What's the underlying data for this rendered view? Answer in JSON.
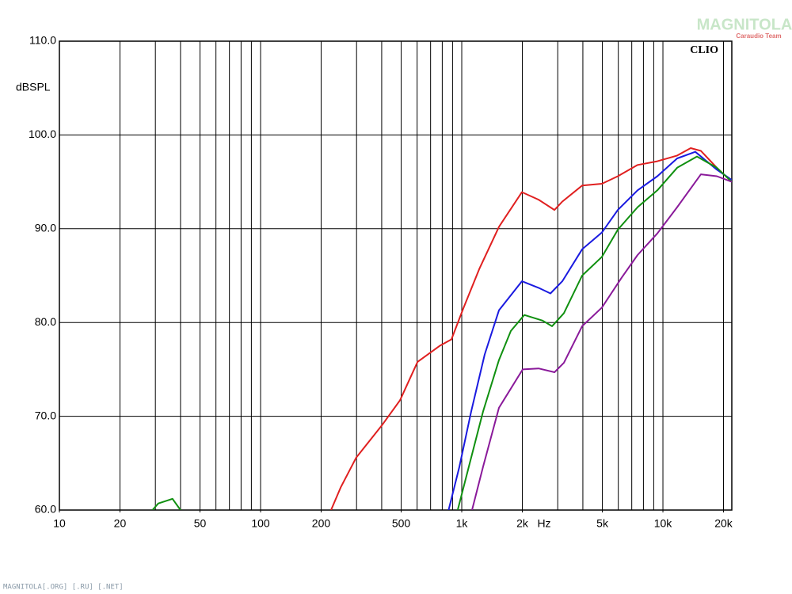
{
  "chart_data": {
    "type": "line",
    "y_label": "dBSPL",
    "x_label": "Hz",
    "brand": "CLIO",
    "watermark": "MAGNITOLA",
    "watermark_sub": "Caraudio Team",
    "footer": "MAGNITOLA[.ORG] [.RU] [.NET]",
    "log_x": true,
    "grid": true,
    "xlim": [
      10,
      22000
    ],
    "ylim": [
      60,
      110
    ],
    "xticks": [
      10,
      20,
      50,
      100,
      200,
      500,
      {
        "value": 1000,
        "label": "1k"
      },
      {
        "value": 2000,
        "label": "2k"
      },
      {
        "value": 5000,
        "label": "5k"
      },
      {
        "value": 10000,
        "label": "10k"
      },
      {
        "value": 20000,
        "label": "20k"
      }
    ],
    "xgrid": [
      20,
      30,
      40,
      50,
      60,
      70,
      80,
      90,
      100,
      200,
      300,
      400,
      500,
      600,
      700,
      800,
      900,
      1000,
      2000,
      3000,
      4000,
      5000,
      6000,
      7000,
      8000,
      9000,
      10000,
      20000
    ],
    "yticks": [
      {
        "value": 60,
        "label": "60.0"
      },
      {
        "value": 70,
        "label": "70.0"
      },
      {
        "value": 80,
        "label": "80.0"
      },
      {
        "value": 90,
        "label": "90.0"
      },
      {
        "value": 100,
        "label": "100.0"
      },
      {
        "value": 110,
        "label": "110.0"
      }
    ],
    "series": [
      {
        "color": "#e02020",
        "x": [
          224,
          250,
          299,
          400,
          493,
          603,
          776,
          889,
          1018,
          1222,
          1531,
          1991,
          2410,
          2890,
          3162,
          3966,
          4977,
          5970,
          7480,
          9380,
          11770,
          13740,
          15450,
          18530,
          22000
        ],
        "values": [
          60,
          62.4,
          65.6,
          69.0,
          71.7,
          75.8,
          77.5,
          78.2,
          81.5,
          85.7,
          90.2,
          93.9,
          93.1,
          92.0,
          92.9,
          94.6,
          94.8,
          95.6,
          96.8,
          97.2,
          97.8,
          98.6,
          98.3,
          96.5,
          95.0
        ]
      },
      {
        "color": "#1a1ae0",
        "x": [
          860,
          973,
          1114,
          1300,
          1531,
          1991,
          2410,
          2760,
          3162,
          3966,
          4977,
          5970,
          7480,
          9380,
          11770,
          14490,
          18530,
          22000
        ],
        "values": [
          60,
          64.6,
          70.5,
          76.6,
          81.3,
          84.4,
          83.7,
          83.1,
          84.4,
          87.8,
          89.6,
          92.0,
          94.1,
          95.6,
          97.5,
          98.2,
          96.3,
          95.2
        ]
      },
      {
        "color": "#109010",
        "x": [
          29,
          31,
          36.5,
          40,
          null,
          955,
          1084,
          1276,
          1531,
          1754,
          2047,
          2524,
          2810,
          3220,
          3966,
          4977,
          5970,
          7480,
          9380,
          11770,
          14760,
          18530,
          22000
        ],
        "values": [
          60,
          60.7,
          61.2,
          60,
          null,
          60,
          64.6,
          70.5,
          76.0,
          79.1,
          80.8,
          80.2,
          79.6,
          81.0,
          85.0,
          87.0,
          89.9,
          92.3,
          94.1,
          96.5,
          97.7,
          96.5,
          95.0
        ]
      },
      {
        "color": "#8a1a9a",
        "x": [
          1125,
          1276,
          1531,
          2010,
          2410,
          2890,
          3220,
          3966,
          4977,
          6240,
          7480,
          9380,
          11770,
          15450,
          18530,
          22000
        ],
        "values": [
          60,
          64.6,
          70.9,
          75.0,
          75.1,
          74.7,
          75.7,
          79.6,
          81.6,
          84.8,
          87.2,
          89.5,
          92.3,
          95.8,
          95.6,
          95.0
        ]
      }
    ]
  }
}
